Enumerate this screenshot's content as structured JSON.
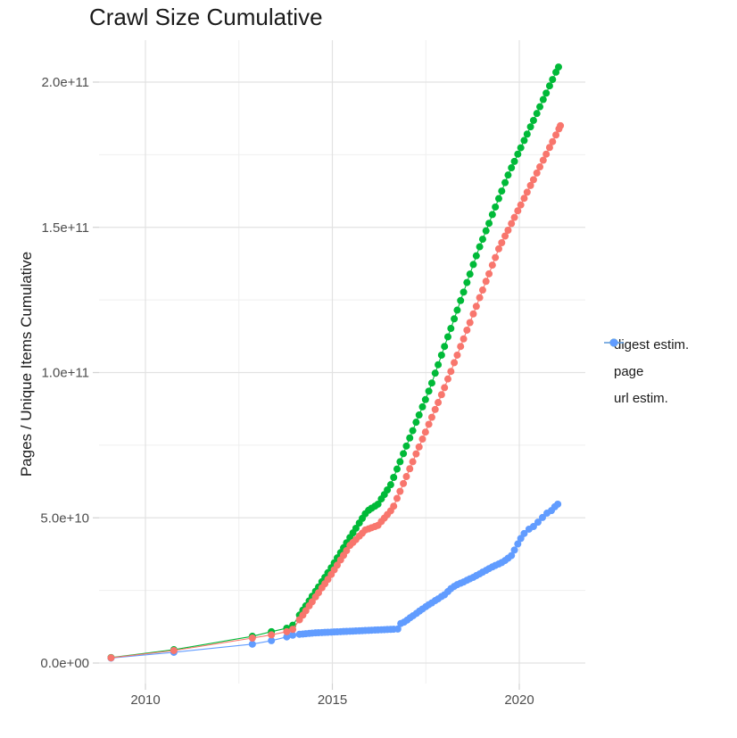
{
  "chart_data": {
    "type": "scatter",
    "title": "Crawl Size Cumulative",
    "xlabel": "",
    "ylabel": "Pages / Unique Items Cumulative",
    "legend_position": "right",
    "grid": "major and minor light-gray gridlines on white background",
    "xlim": [
      2008.7,
      2021.8
    ],
    "ylim": [
      -7000000000,
      214000000000
    ],
    "x_axis": {
      "tick_labels": [
        "2010",
        "2015",
        "2020"
      ],
      "tick_years": [
        2010,
        2015,
        2020
      ],
      "minor_years": [
        2012.5,
        2017.5
      ]
    },
    "y_axis": {
      "tick_labels": [
        "0.0e+00",
        "5.0e+10",
        "1.0e+11",
        "1.5e+11",
        "2.0e+11"
      ],
      "tick_billions": [
        0,
        50,
        100,
        150,
        200
      ],
      "minor_billions": [
        25,
        75,
        125,
        175
      ]
    },
    "y_unit": "pages / unique items, values below in billions (1e9)",
    "series": [
      {
        "name": "digest estim.",
        "color": "#F8766D",
        "points": [
          [
            2009.08,
            1.8
          ],
          [
            2010.76,
            4.3
          ],
          [
            2012.86,
            8.6
          ],
          [
            2013.37,
            9.7
          ],
          [
            2013.78,
            10.8
          ],
          [
            2013.94,
            11.6
          ],
          [
            2014.12,
            14.9
          ],
          [
            2014.21,
            16.5
          ],
          [
            2014.29,
            18.0
          ],
          [
            2014.38,
            19.7
          ],
          [
            2014.46,
            21.1
          ],
          [
            2014.55,
            22.8
          ],
          [
            2014.63,
            24.2
          ],
          [
            2014.72,
            25.9
          ],
          [
            2014.8,
            27.3
          ],
          [
            2014.88,
            28.8
          ],
          [
            2014.97,
            30.5
          ],
          [
            2015.05,
            32.1
          ],
          [
            2015.13,
            33.7
          ],
          [
            2015.22,
            35.5
          ],
          [
            2015.3,
            37.1
          ],
          [
            2015.38,
            38.7
          ],
          [
            2015.47,
            40.5
          ],
          [
            2015.55,
            41.5
          ],
          [
            2015.63,
            42.5
          ],
          [
            2015.72,
            43.7
          ],
          [
            2015.8,
            44.7
          ],
          [
            2015.88,
            45.8
          ],
          [
            2015.97,
            46.2
          ],
          [
            2016.05,
            46.6
          ],
          [
            2016.14,
            47.0
          ],
          [
            2016.22,
            47.4
          ],
          [
            2016.31,
            48.7
          ],
          [
            2016.39,
            49.9
          ],
          [
            2016.47,
            51.1
          ],
          [
            2016.56,
            52.4
          ],
          [
            2016.64,
            54.0
          ],
          [
            2016.73,
            56.7
          ],
          [
            2016.81,
            59.1
          ],
          [
            2016.9,
            61.8
          ],
          [
            2016.98,
            64.2
          ],
          [
            2017.07,
            66.9
          ],
          [
            2017.15,
            69.3
          ],
          [
            2017.24,
            72.0
          ],
          [
            2017.32,
            74.4
          ],
          [
            2017.41,
            77.1
          ],
          [
            2017.49,
            79.5
          ],
          [
            2017.58,
            82.2
          ],
          [
            2017.66,
            84.6
          ],
          [
            2017.75,
            87.3
          ],
          [
            2017.83,
            89.7
          ],
          [
            2017.92,
            92.4
          ],
          [
            2018.0,
            94.8
          ],
          [
            2018.09,
            97.8
          ],
          [
            2018.17,
            100.4
          ],
          [
            2018.26,
            103.4
          ],
          [
            2018.34,
            106.0
          ],
          [
            2018.43,
            109.0
          ],
          [
            2018.51,
            111.6
          ],
          [
            2018.6,
            114.6
          ],
          [
            2018.68,
            117.2
          ],
          [
            2018.77,
            120.2
          ],
          [
            2018.85,
            122.8
          ],
          [
            2018.94,
            125.8
          ],
          [
            2019.02,
            128.4
          ],
          [
            2019.11,
            131.4
          ],
          [
            2019.19,
            134.0
          ],
          [
            2019.28,
            137.0
          ],
          [
            2019.36,
            139.6
          ],
          [
            2019.45,
            142.6
          ],
          [
            2019.53,
            144.7
          ],
          [
            2019.62,
            147.0
          ],
          [
            2019.7,
            149.0
          ],
          [
            2019.79,
            151.3
          ],
          [
            2019.87,
            153.4
          ],
          [
            2019.96,
            155.7
          ],
          [
            2020.04,
            157.7
          ],
          [
            2020.13,
            160.0
          ],
          [
            2020.21,
            162.1
          ],
          [
            2020.3,
            164.4
          ],
          [
            2020.38,
            166.4
          ],
          [
            2020.47,
            168.7
          ],
          [
            2020.55,
            170.8
          ],
          [
            2020.64,
            173.1
          ],
          [
            2020.72,
            175.2
          ],
          [
            2020.81,
            177.5
          ],
          [
            2020.89,
            179.5
          ],
          [
            2020.98,
            181.8
          ],
          [
            2021.06,
            183.9
          ],
          [
            2021.1,
            185.0
          ]
        ]
      },
      {
        "name": "page",
        "color": "#00BA38",
        "points": [
          [
            2009.08,
            1.9
          ],
          [
            2010.76,
            4.6
          ],
          [
            2012.86,
            9.2
          ],
          [
            2013.37,
            10.8
          ],
          [
            2013.78,
            12.0
          ],
          [
            2013.94,
            13.0
          ],
          [
            2014.12,
            16.5
          ],
          [
            2014.21,
            18.2
          ],
          [
            2014.29,
            19.7
          ],
          [
            2014.38,
            21.4
          ],
          [
            2014.46,
            23.0
          ],
          [
            2014.55,
            24.7
          ],
          [
            2014.63,
            26.2
          ],
          [
            2014.72,
            28.0
          ],
          [
            2014.8,
            29.5
          ],
          [
            2014.88,
            31.1
          ],
          [
            2014.97,
            32.8
          ],
          [
            2015.05,
            34.5
          ],
          [
            2015.13,
            36.2
          ],
          [
            2015.22,
            38.0
          ],
          [
            2015.3,
            39.7
          ],
          [
            2015.38,
            41.4
          ],
          [
            2015.47,
            43.2
          ],
          [
            2015.55,
            44.8
          ],
          [
            2015.63,
            46.4
          ],
          [
            2015.72,
            48.2
          ],
          [
            2015.8,
            49.8
          ],
          [
            2015.88,
            51.4
          ],
          [
            2015.97,
            52.6
          ],
          [
            2016.05,
            53.3
          ],
          [
            2016.14,
            54.0
          ],
          [
            2016.22,
            54.7
          ],
          [
            2016.31,
            56.5
          ],
          [
            2016.39,
            58.0
          ],
          [
            2016.47,
            59.6
          ],
          [
            2016.56,
            61.4
          ],
          [
            2016.64,
            63.9
          ],
          [
            2016.73,
            66.8
          ],
          [
            2016.81,
            69.3
          ],
          [
            2016.9,
            72.1
          ],
          [
            2016.98,
            74.7
          ],
          [
            2017.07,
            77.5
          ],
          [
            2017.15,
            80.0
          ],
          [
            2017.24,
            82.9
          ],
          [
            2017.32,
            85.4
          ],
          [
            2017.41,
            88.2
          ],
          [
            2017.49,
            90.7
          ],
          [
            2017.58,
            93.6
          ],
          [
            2017.66,
            96.4
          ],
          [
            2017.75,
            99.8
          ],
          [
            2017.83,
            102.7
          ],
          [
            2017.92,
            106.0
          ],
          [
            2018.0,
            109.0
          ],
          [
            2018.09,
            112.3
          ],
          [
            2018.17,
            115.2
          ],
          [
            2018.26,
            118.5
          ],
          [
            2018.34,
            121.5
          ],
          [
            2018.43,
            124.8
          ],
          [
            2018.51,
            127.7
          ],
          [
            2018.6,
            131.0
          ],
          [
            2018.68,
            133.9
          ],
          [
            2018.77,
            137.2
          ],
          [
            2018.85,
            140.2
          ],
          [
            2018.94,
            143.3
          ],
          [
            2019.02,
            145.9
          ],
          [
            2019.11,
            148.8
          ],
          [
            2019.19,
            151.4
          ],
          [
            2019.28,
            154.4
          ],
          [
            2019.36,
            157.0
          ],
          [
            2019.45,
            159.9
          ],
          [
            2019.53,
            162.5
          ],
          [
            2019.62,
            165.4
          ],
          [
            2019.7,
            168.0
          ],
          [
            2019.79,
            170.5
          ],
          [
            2019.87,
            172.7
          ],
          [
            2019.96,
            175.2
          ],
          [
            2020.04,
            177.4
          ],
          [
            2020.13,
            179.9
          ],
          [
            2020.21,
            182.1
          ],
          [
            2020.3,
            184.6
          ],
          [
            2020.38,
            186.8
          ],
          [
            2020.47,
            189.2
          ],
          [
            2020.55,
            191.5
          ],
          [
            2020.64,
            194.0
          ],
          [
            2020.72,
            196.2
          ],
          [
            2020.81,
            198.7
          ],
          [
            2020.89,
            200.9
          ],
          [
            2020.98,
            203.4
          ],
          [
            2021.05,
            205.2
          ]
        ]
      },
      {
        "name": "url estim.",
        "color": "#619CFF",
        "points": [
          [
            2009.08,
            1.7
          ],
          [
            2010.76,
            3.7
          ],
          [
            2012.86,
            6.5
          ],
          [
            2013.37,
            7.7
          ],
          [
            2013.78,
            9.0
          ],
          [
            2013.94,
            9.6
          ],
          [
            2014.12,
            9.9
          ],
          [
            2014.21,
            10.0
          ],
          [
            2014.29,
            10.1
          ],
          [
            2014.38,
            10.2
          ],
          [
            2014.46,
            10.3
          ],
          [
            2014.55,
            10.4
          ],
          [
            2014.63,
            10.45
          ],
          [
            2014.72,
            10.5
          ],
          [
            2014.8,
            10.55
          ],
          [
            2014.88,
            10.6
          ],
          [
            2014.97,
            10.65
          ],
          [
            2015.05,
            10.7
          ],
          [
            2015.13,
            10.75
          ],
          [
            2015.22,
            10.8
          ],
          [
            2015.3,
            10.85
          ],
          [
            2015.38,
            10.9
          ],
          [
            2015.47,
            10.95
          ],
          [
            2015.55,
            11.0
          ],
          [
            2015.63,
            11.05
          ],
          [
            2015.72,
            11.1
          ],
          [
            2015.8,
            11.15
          ],
          [
            2015.88,
            11.2
          ],
          [
            2015.97,
            11.25
          ],
          [
            2016.05,
            11.3
          ],
          [
            2016.14,
            11.35
          ],
          [
            2016.22,
            11.4
          ],
          [
            2016.31,
            11.45
          ],
          [
            2016.39,
            11.5
          ],
          [
            2016.47,
            11.55
          ],
          [
            2016.56,
            11.6
          ],
          [
            2016.64,
            11.65
          ],
          [
            2016.75,
            11.7
          ],
          [
            2016.83,
            13.6
          ],
          [
            2016.92,
            14.1
          ],
          [
            2017.0,
            14.8
          ],
          [
            2017.08,
            15.6
          ],
          [
            2017.16,
            16.3
          ],
          [
            2017.25,
            17.1
          ],
          [
            2017.33,
            17.9
          ],
          [
            2017.41,
            18.6
          ],
          [
            2017.5,
            19.4
          ],
          [
            2017.58,
            20.1
          ],
          [
            2017.66,
            20.7
          ],
          [
            2017.75,
            21.5
          ],
          [
            2017.83,
            22.1
          ],
          [
            2017.92,
            22.9
          ],
          [
            2018.0,
            23.5
          ],
          [
            2018.09,
            24.6
          ],
          [
            2018.17,
            25.6
          ],
          [
            2018.26,
            26.4
          ],
          [
            2018.34,
            27.0
          ],
          [
            2018.43,
            27.5
          ],
          [
            2018.51,
            27.9
          ],
          [
            2018.6,
            28.5
          ],
          [
            2018.68,
            29.0
          ],
          [
            2018.77,
            29.5
          ],
          [
            2018.85,
            30.1
          ],
          [
            2018.94,
            30.7
          ],
          [
            2019.02,
            31.3
          ],
          [
            2019.11,
            31.9
          ],
          [
            2019.19,
            32.5
          ],
          [
            2019.28,
            33.1
          ],
          [
            2019.36,
            33.6
          ],
          [
            2019.45,
            34.1
          ],
          [
            2019.53,
            34.6
          ],
          [
            2019.62,
            35.3
          ],
          [
            2019.7,
            36.1
          ],
          [
            2019.79,
            37.0
          ],
          [
            2019.87,
            38.9
          ],
          [
            2019.96,
            41.0
          ],
          [
            2020.04,
            42.9
          ],
          [
            2020.13,
            44.6
          ],
          [
            2020.26,
            46.1
          ],
          [
            2020.38,
            47.0
          ],
          [
            2020.5,
            48.5
          ],
          [
            2020.62,
            50.1
          ],
          [
            2020.74,
            51.6
          ],
          [
            2020.86,
            52.5
          ],
          [
            2020.95,
            53.8
          ],
          [
            2021.03,
            54.7
          ]
        ]
      }
    ],
    "style": {
      "major_grid_color": "#e2e2e2",
      "minor_grid_color": "#efefef",
      "tick_color": "#d2d2d2",
      "axis_text_color": "#4d4d4d",
      "point_radius": 4
    }
  }
}
